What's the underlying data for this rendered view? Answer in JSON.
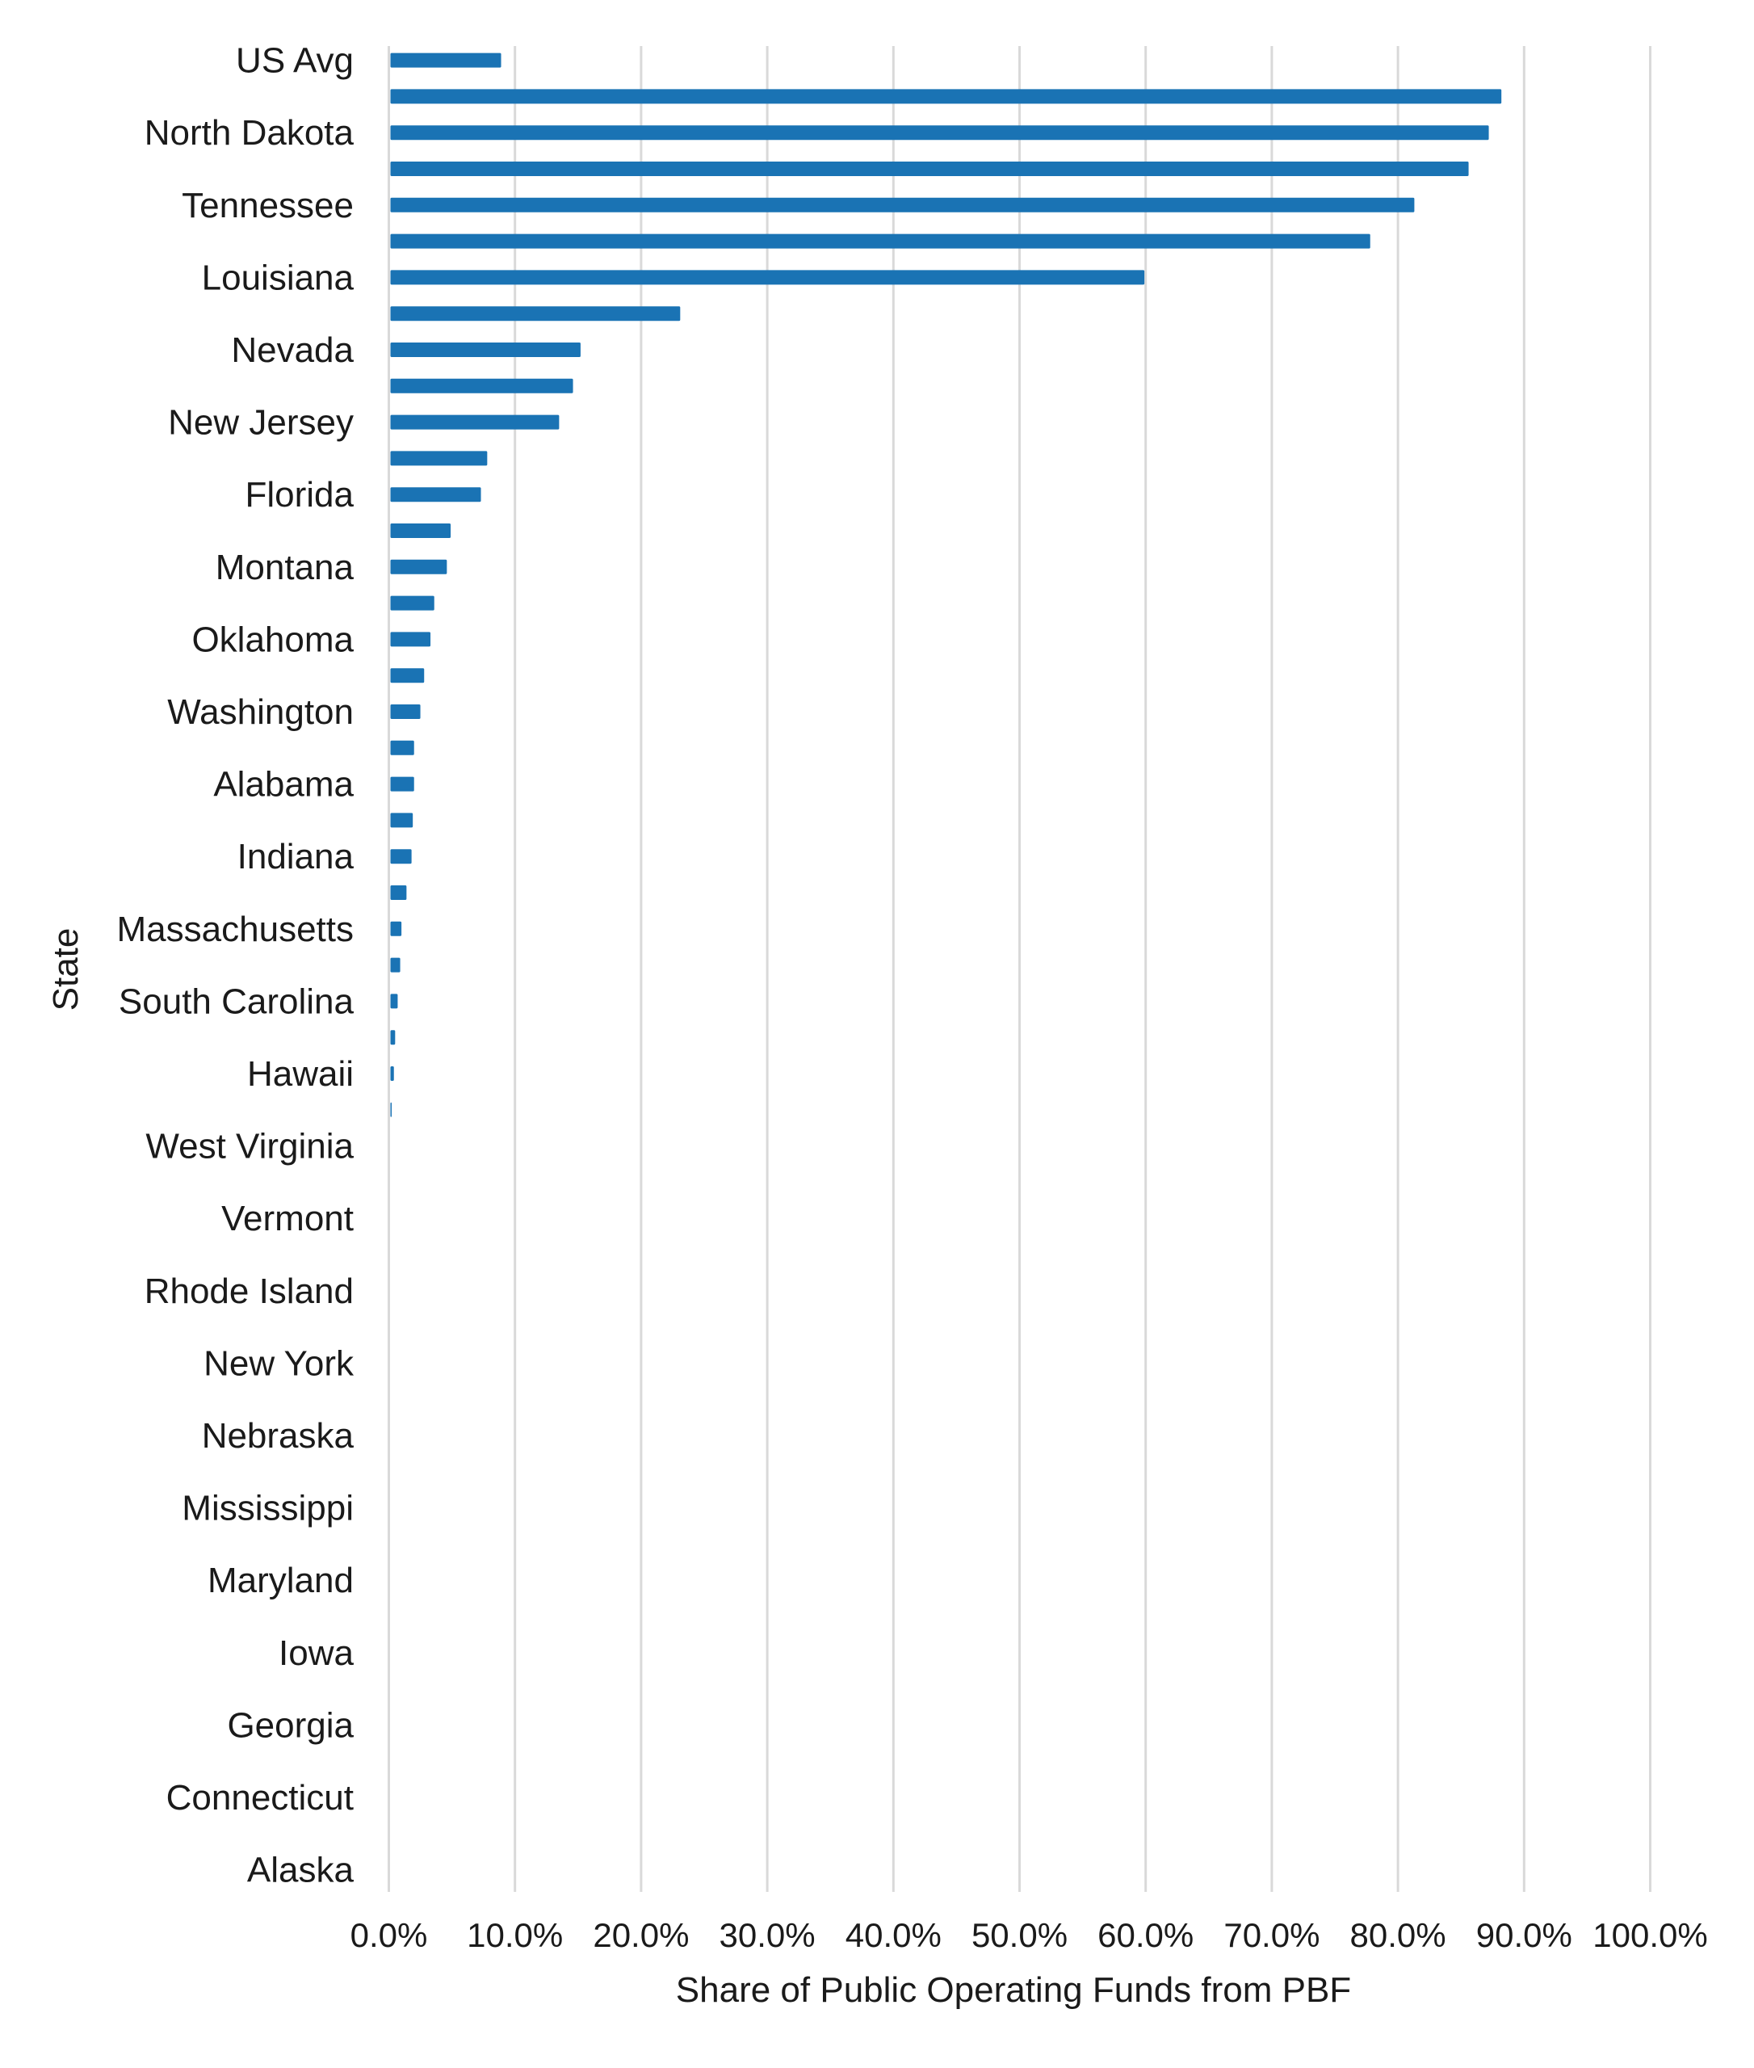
{
  "chart_data": {
    "type": "bar",
    "orientation": "horizontal",
    "xlabel": "Share of Public Operating Funds from PBF",
    "ylabel": "State",
    "xlim": [
      0,
      100
    ],
    "x_ticks": [
      "0.0%",
      "10.0%",
      "20.0%",
      "30.0%",
      "40.0%",
      "50.0%",
      "60.0%",
      "70.0%",
      "80.0%",
      "90.0%",
      "100.0%"
    ],
    "grid": "vertical",
    "bar_color": "#1a73b4",
    "categories": [
      "US Avg",
      "",
      "North Dakota",
      "",
      "Tennessee",
      "",
      "Louisiana",
      "",
      "Nevada",
      "",
      "New Jersey",
      "",
      "Florida",
      "",
      "Montana",
      "",
      "Oklahoma",
      "",
      "Washington",
      "",
      "Alabama",
      "",
      "Indiana",
      "",
      "Massachusetts",
      "",
      "South Carolina",
      "",
      "Hawaii",
      "",
      "West Virginia",
      "",
      "Vermont",
      "",
      "Rhode Island",
      "",
      "New York",
      "",
      "Nebraska",
      "",
      "Mississippi",
      "",
      "Maryland",
      "",
      "Iowa",
      "",
      "Georgia",
      "",
      "Connecticut",
      "",
      "Alaska"
    ],
    "values": [
      8.9,
      88.2,
      87.2,
      85.6,
      81.3,
      77.8,
      59.9,
      23.1,
      15.2,
      14.6,
      13.5,
      7.8,
      7.3,
      4.9,
      4.6,
      3.6,
      3.3,
      2.8,
      2.5,
      2.0,
      2.0,
      1.9,
      1.8,
      1.4,
      1.0,
      0.9,
      0.7,
      0.5,
      0.4,
      0.1,
      0,
      0,
      0,
      0,
      0,
      0,
      0,
      0,
      0,
      0,
      0,
      0,
      0,
      0,
      0,
      0,
      0,
      0,
      0,
      0,
      0
    ]
  }
}
